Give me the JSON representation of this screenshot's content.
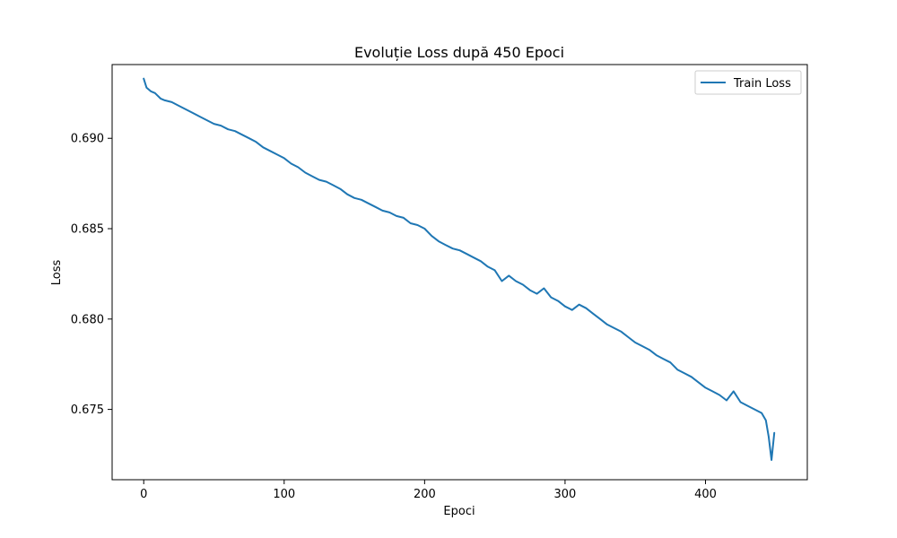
{
  "chart_data": {
    "type": "line",
    "title": "Evoluție Loss după 450 Epoci",
    "xlabel": "Epoci",
    "ylabel": "Loss",
    "xlim": [
      -22.5,
      472.5
    ],
    "ylim": [
      0.67111,
      0.69408
    ],
    "xticks": [
      0,
      100,
      200,
      300,
      400
    ],
    "yticks": [
      0.675,
      0.68,
      0.685,
      0.69
    ],
    "ytick_labels": [
      "0.675",
      "0.680",
      "0.685",
      "0.690"
    ],
    "grid": false,
    "legend_position": "top-right",
    "colors": {
      "series": "#1f77b4"
    },
    "series": [
      {
        "name": "Train Loss",
        "x": [
          0,
          2,
          5,
          8,
          12,
          15,
          20,
          25,
          30,
          35,
          40,
          45,
          50,
          55,
          60,
          65,
          70,
          75,
          80,
          85,
          90,
          95,
          100,
          105,
          110,
          115,
          120,
          125,
          130,
          135,
          140,
          145,
          150,
          155,
          160,
          165,
          170,
          175,
          180,
          185,
          190,
          195,
          200,
          205,
          210,
          215,
          220,
          225,
          230,
          235,
          240,
          245,
          250,
          255,
          260,
          265,
          270,
          275,
          280,
          285,
          290,
          295,
          300,
          305,
          310,
          315,
          320,
          325,
          330,
          335,
          340,
          345,
          350,
          355,
          360,
          365,
          370,
          375,
          380,
          385,
          390,
          395,
          400,
          405,
          410,
          415,
          420,
          425,
          430,
          435,
          440,
          443,
          445,
          447,
          449
        ],
        "y": [
          0.6933,
          0.6928,
          0.6926,
          0.6925,
          0.6922,
          0.6921,
          0.692,
          0.6918,
          0.6916,
          0.6914,
          0.6912,
          0.691,
          0.6908,
          0.6907,
          0.6905,
          0.6904,
          0.6902,
          0.69,
          0.6898,
          0.6895,
          0.6893,
          0.6891,
          0.6889,
          0.6886,
          0.6884,
          0.6881,
          0.6879,
          0.6877,
          0.6876,
          0.6874,
          0.6872,
          0.6869,
          0.6867,
          0.6866,
          0.6864,
          0.6862,
          0.686,
          0.6859,
          0.6857,
          0.6856,
          0.6853,
          0.6852,
          0.685,
          0.6846,
          0.6843,
          0.6841,
          0.6839,
          0.6838,
          0.6836,
          0.6834,
          0.6832,
          0.6829,
          0.6827,
          0.6821,
          0.6824,
          0.6821,
          0.6819,
          0.6816,
          0.6814,
          0.6817,
          0.6812,
          0.681,
          0.6807,
          0.6805,
          0.6808,
          0.6806,
          0.6803,
          0.68,
          0.6797,
          0.6795,
          0.6793,
          0.679,
          0.6787,
          0.6785,
          0.6783,
          0.678,
          0.6778,
          0.6776,
          0.6772,
          0.677,
          0.6768,
          0.6765,
          0.6762,
          0.676,
          0.6758,
          0.6755,
          0.676,
          0.6754,
          0.6752,
          0.675,
          0.6748,
          0.6744,
          0.6735,
          0.6722,
          0.6737
        ]
      }
    ]
  }
}
